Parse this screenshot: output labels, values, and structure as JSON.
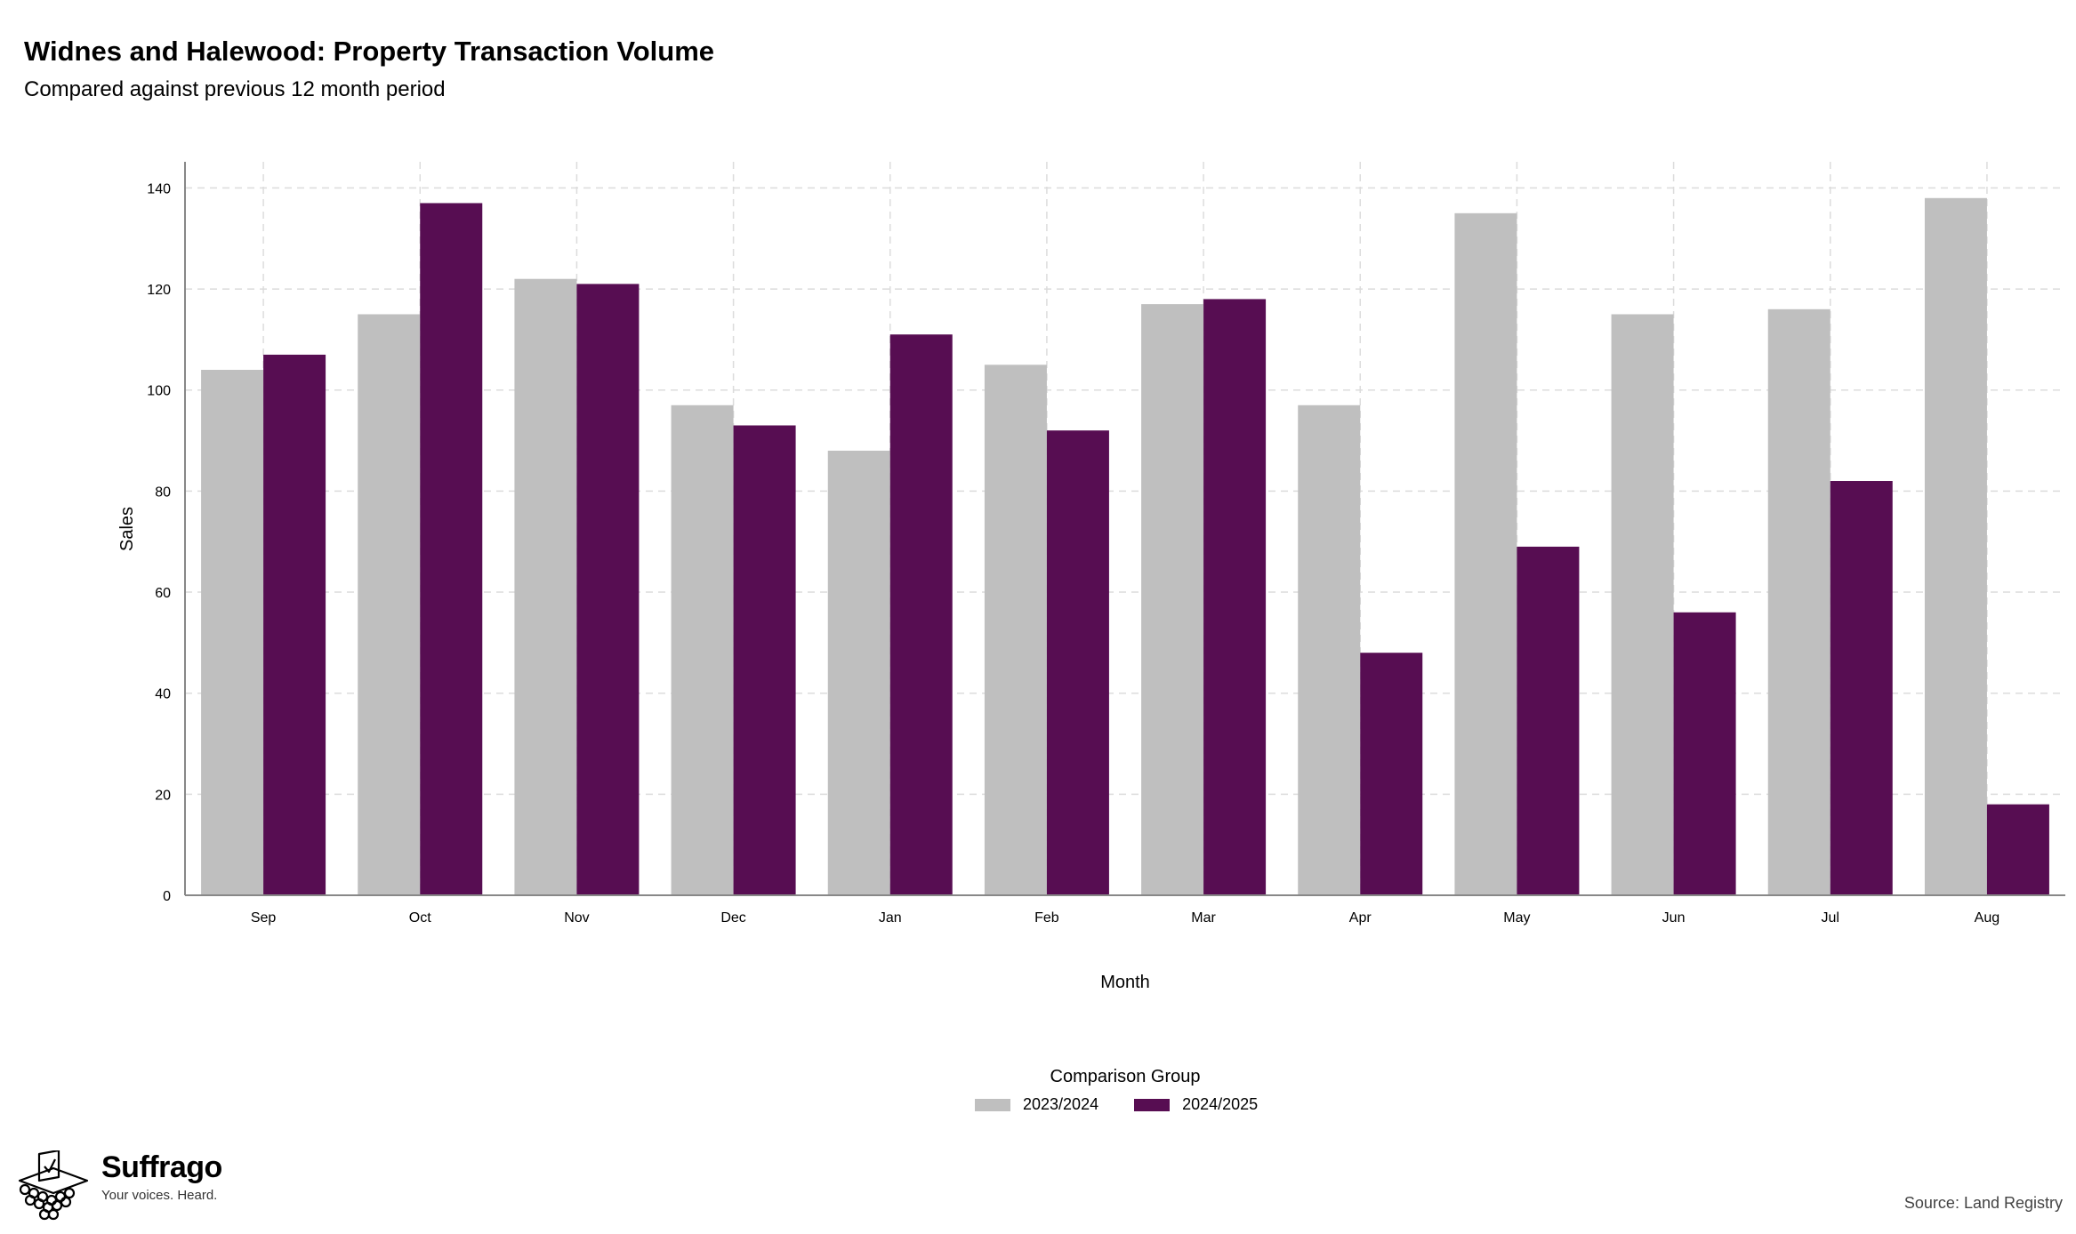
{
  "header": {
    "title": "Widnes and Halewood: Property Transaction Volume",
    "subtitle": "Compared against previous 12 month period"
  },
  "legend": {
    "title": "Comparison Group",
    "items": [
      {
        "label": "2023/2024",
        "color": "#bfbfbf"
      },
      {
        "label": "2024/2025",
        "color": "#570d52"
      }
    ]
  },
  "branding": {
    "name": "Suffrago",
    "tagline": "Your voices. Heard.",
    "logo_icon": "ballot-box-icon"
  },
  "source": "Source: Land Registry",
  "chart_data": {
    "type": "bar",
    "xlabel": "Month",
    "ylabel": "Sales",
    "ylim": [
      0,
      145
    ],
    "yticks": [
      0,
      20,
      40,
      60,
      80,
      100,
      120,
      140
    ],
    "grid": true,
    "legend_position": "bottom",
    "categories": [
      "Sep",
      "Oct",
      "Nov",
      "Dec",
      "Jan",
      "Feb",
      "Mar",
      "Apr",
      "May",
      "Jun",
      "Jul",
      "Aug"
    ],
    "series": [
      {
        "name": "2023/2024",
        "color": "#bfbfbf",
        "values": [
          104,
          115,
          122,
          97,
          88,
          105,
          117,
          97,
          135,
          115,
          116,
          138
        ]
      },
      {
        "name": "2024/2025",
        "color": "#570d52",
        "values": [
          107,
          137,
          121,
          93,
          111,
          92,
          118,
          48,
          69,
          56,
          82,
          18
        ]
      }
    ]
  }
}
